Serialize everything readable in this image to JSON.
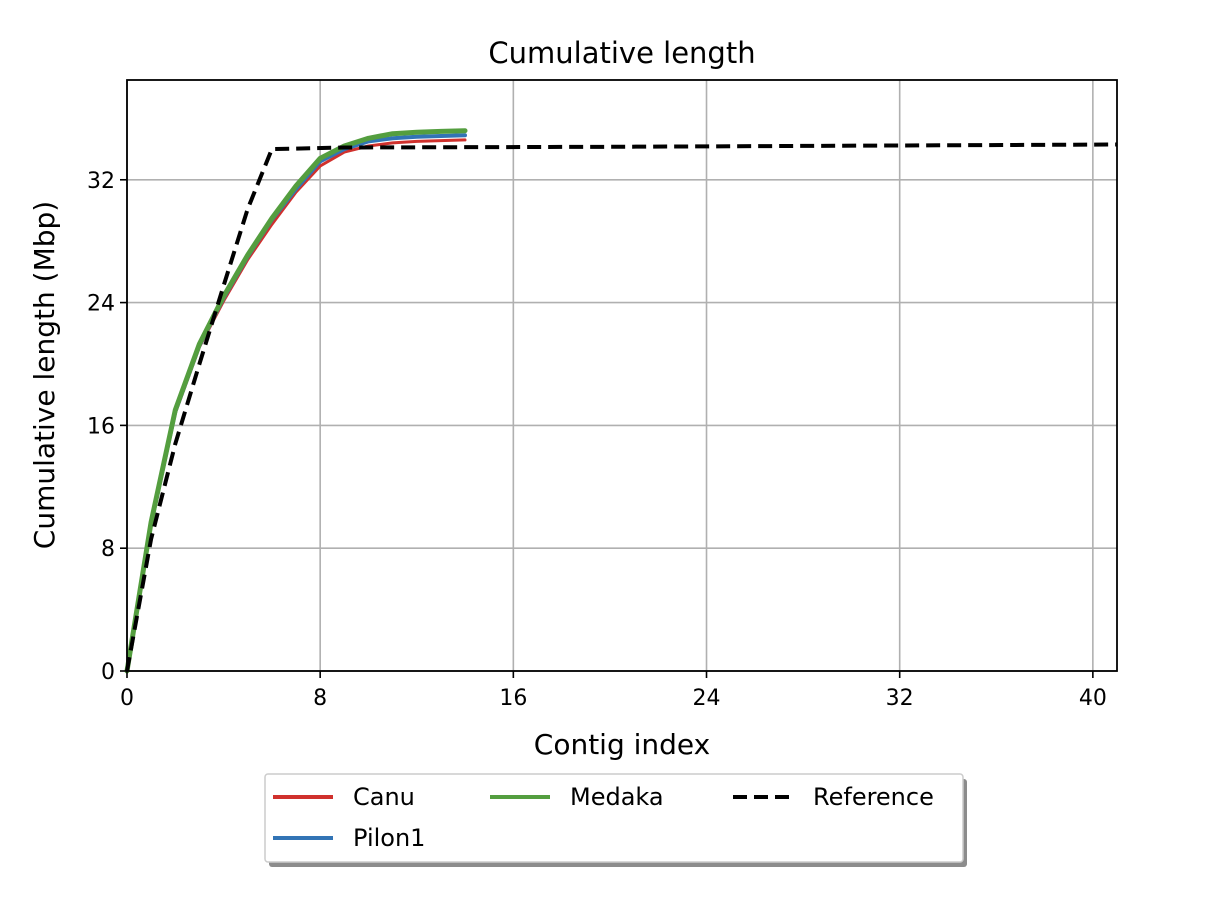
{
  "chart_data": {
    "type": "line",
    "title": "Cumulative length",
    "xlabel": "Contig index",
    "ylabel": "Cumulative length (Mbp)",
    "xlim": [
      0,
      41
    ],
    "ylim": [
      0,
      38.5
    ],
    "xticks": [
      0,
      8,
      16,
      24,
      32,
      40
    ],
    "yticks": [
      0,
      8,
      16,
      24,
      32
    ],
    "grid": true,
    "legend_position": "below",
    "series": [
      {
        "name": "Canu",
        "color": "#d0312d",
        "style": "solid",
        "x": [
          0,
          1,
          2,
          3,
          4,
          5,
          6,
          7,
          8,
          9,
          10,
          11,
          12,
          13,
          14
        ],
        "y": [
          0,
          9.5,
          16.8,
          21.1,
          24.1,
          26.8,
          29.1,
          31.2,
          32.9,
          33.8,
          34.2,
          34.4,
          34.5,
          34.55,
          34.6
        ]
      },
      {
        "name": "Pilon1",
        "color": "#3274b5",
        "style": "solid",
        "x": [
          0,
          1,
          2,
          3,
          4,
          5,
          6,
          7,
          8,
          9,
          10,
          11,
          12,
          13,
          14
        ],
        "y": [
          0,
          9.6,
          16.9,
          21.2,
          24.3,
          27.0,
          29.4,
          31.4,
          33.2,
          34.0,
          34.5,
          34.7,
          34.8,
          34.85,
          34.9
        ]
      },
      {
        "name": "Medaka",
        "color": "#549e3f",
        "style": "solid",
        "x": [
          0,
          1,
          2,
          3,
          4,
          5,
          6,
          7,
          8,
          9,
          10,
          11,
          12,
          13,
          14
        ],
        "y": [
          0,
          9.7,
          17.0,
          21.3,
          24.4,
          27.1,
          29.5,
          31.6,
          33.4,
          34.2,
          34.7,
          35.0,
          35.1,
          35.15,
          35.2
        ]
      },
      {
        "name": "Reference",
        "color": "#000000",
        "style": "dashed",
        "x": [
          0,
          1,
          2,
          3,
          4,
          5,
          6,
          9,
          20,
          41
        ],
        "y": [
          0,
          8.6,
          14.8,
          20.0,
          25.1,
          30.1,
          34.0,
          34.1,
          34.15,
          34.3
        ]
      }
    ]
  }
}
